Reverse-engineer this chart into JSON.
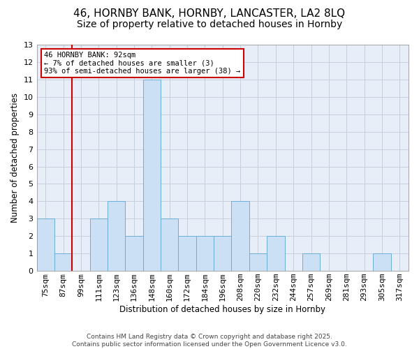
{
  "title1": "46, HORNBY BANK, HORNBY, LANCASTER, LA2 8LQ",
  "title2": "Size of property relative to detached houses in Hornby",
  "xlabel": "Distribution of detached houses by size in Hornby",
  "ylabel": "Number of detached properties",
  "categories": [
    "75sqm",
    "87sqm",
    "99sqm",
    "111sqm",
    "123sqm",
    "136sqm",
    "148sqm",
    "160sqm",
    "172sqm",
    "184sqm",
    "196sqm",
    "208sqm",
    "220sqm",
    "232sqm",
    "244sqm",
    "257sqm",
    "269sqm",
    "281sqm",
    "293sqm",
    "305sqm",
    "317sqm"
  ],
  "values": [
    3,
    1,
    0,
    3,
    4,
    2,
    11,
    3,
    2,
    2,
    2,
    4,
    1,
    2,
    0,
    1,
    0,
    0,
    0,
    1,
    0
  ],
  "bar_color": "#cce0f5",
  "bar_edge_color": "#6baed6",
  "subject_line_color": "#cc0000",
  "annotation_text": "46 HORNBY BANK: 92sqm\n← 7% of detached houses are smaller (3)\n93% of semi-detached houses are larger (38) →",
  "annotation_box_facecolor": "#ffffff",
  "annotation_box_edgecolor": "#cc0000",
  "ylim": [
    0,
    13
  ],
  "yticks": [
    0,
    1,
    2,
    3,
    4,
    5,
    6,
    7,
    8,
    9,
    10,
    11,
    12,
    13
  ],
  "fig_bg_color": "#ffffff",
  "plot_bg_color": "#e8eef8",
  "grid_color": "#c8d0e0",
  "footer_text": "Contains HM Land Registry data © Crown copyright and database right 2025.\nContains public sector information licensed under the Open Government Licence v3.0.",
  "title_fontsize": 11,
  "subtitle_fontsize": 10,
  "axis_label_fontsize": 8.5,
  "tick_fontsize": 8,
  "footer_fontsize": 6.5
}
